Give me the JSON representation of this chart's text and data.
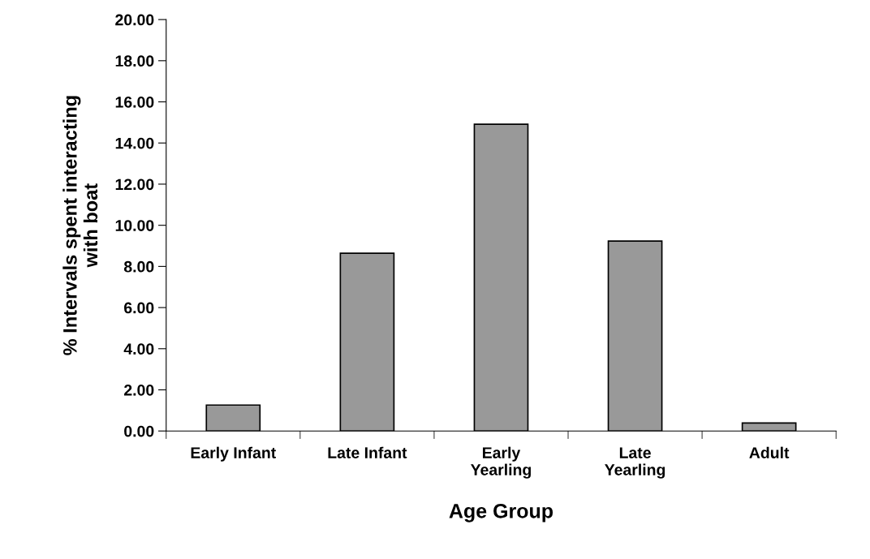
{
  "chart_data": {
    "type": "bar",
    "categories": [
      "Early Infant",
      "Late Infant",
      "Early\nYearling",
      "Late\nYearling",
      "Adult"
    ],
    "values": [
      1.26,
      8.64,
      14.91,
      9.23,
      0.39
    ],
    "color": "#999999",
    "xlabel": "Age Group",
    "ylabel": "% Intervals spent interacting\nwith boat",
    "ylim": [
      0,
      20
    ],
    "yticks": [
      {
        "value": 0,
        "label": "0.00"
      },
      {
        "value": 2,
        "label": "2.00"
      },
      {
        "value": 4,
        "label": "4.00"
      },
      {
        "value": 6,
        "label": "6.00"
      },
      {
        "value": 8,
        "label": "8.00"
      },
      {
        "value": 10,
        "label": "10.00"
      },
      {
        "value": 12,
        "label": "12.00"
      },
      {
        "value": 14,
        "label": "14.00"
      },
      {
        "value": 16,
        "label": "16.00"
      },
      {
        "value": 18,
        "label": "18.00"
      },
      {
        "value": 20,
        "label": "20.00"
      }
    ],
    "grid": false,
    "legend": false
  }
}
